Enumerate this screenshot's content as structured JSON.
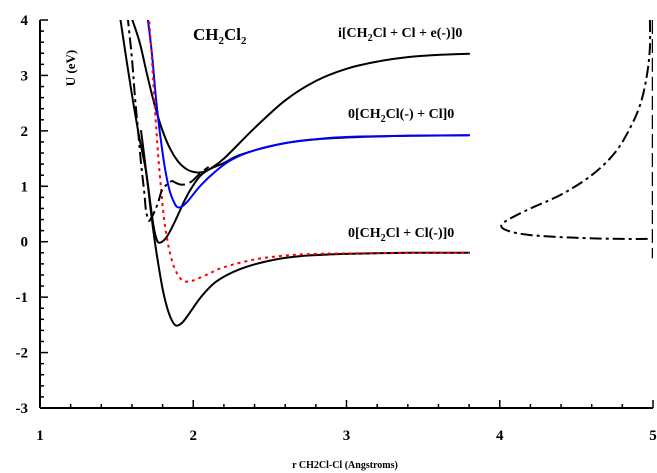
{
  "chart_data": {
    "type": "line",
    "xlabel": "r CH2Cl-Cl (Angstroms)",
    "ylabel": "U (eV)",
    "xlim": [
      1,
      5
    ],
    "ylim": [
      -3,
      4
    ],
    "x_ticks": [
      "1",
      "2",
      "3",
      "4",
      "5"
    ],
    "y_ticks": [
      "-3",
      "-2",
      "-1",
      "0",
      "1",
      "2",
      "3",
      "4"
    ],
    "grid": false,
    "annotations": {
      "molecule": {
        "main": "CH",
        "sub1": "2",
        "mid": "Cl",
        "sub2": "2"
      },
      "upper_state": {
        "pre": "i[CH",
        "sub": "2",
        "post": "Cl  + Cl + e(-)]0"
      },
      "middle_state": {
        "pre": "0[CH",
        "sub": "2",
        "post": "Cl(-) + Cl]0"
      },
      "lower_state": {
        "pre": "0[CH",
        "sub": "2",
        "post": "Cl + Cl(-)]0"
      }
    },
    "series": [
      {
        "color": "#000000",
        "dash": "solid",
        "points": [
          [
            1.59,
            4.1
          ],
          [
            1.65,
            3.6
          ],
          [
            1.7,
            3.0
          ],
          [
            1.75,
            2.45
          ],
          [
            1.8,
            2.0
          ],
          [
            1.85,
            1.67
          ],
          [
            1.9,
            1.45
          ],
          [
            1.95,
            1.32
          ],
          [
            2.0,
            1.26
          ],
          [
            2.05,
            1.25
          ],
          [
            2.1,
            1.3
          ],
          [
            2.2,
            1.5
          ],
          [
            2.4,
            2.05
          ],
          [
            2.6,
            2.55
          ],
          [
            2.8,
            2.9
          ],
          [
            3.0,
            3.12
          ],
          [
            3.2,
            3.25
          ],
          [
            3.4,
            3.33
          ],
          [
            3.6,
            3.37
          ],
          [
            3.8,
            3.39
          ]
        ]
      },
      {
        "color": "#000000",
        "dash": "solid",
        "points": [
          [
            1.52,
            4.1
          ],
          [
            1.58,
            3.0
          ],
          [
            1.64,
            2.0
          ],
          [
            1.69,
            1.3
          ],
          [
            1.72,
            0.7
          ],
          [
            1.74,
            0.3
          ],
          [
            1.76,
            0.05
          ],
          [
            1.78,
            -0.02
          ],
          [
            1.82,
            0.06
          ],
          [
            1.86,
            0.25
          ],
          [
            1.9,
            0.48
          ],
          [
            1.95,
            0.78
          ],
          [
            2.0,
            1.02
          ],
          [
            2.05,
            1.2
          ],
          [
            2.1,
            1.3
          ],
          [
            2.2,
            1.42
          ],
          [
            2.3,
            1.56
          ],
          [
            2.5,
            1.72
          ],
          [
            2.7,
            1.82
          ],
          [
            3.0,
            1.88
          ],
          [
            3.4,
            1.91
          ],
          [
            3.8,
            1.92
          ]
        ]
      },
      {
        "color": "#0000ff",
        "dash": "solid",
        "points": [
          [
            1.7,
            4.1
          ],
          [
            1.73,
            3.4
          ],
          [
            1.76,
            2.5
          ],
          [
            1.79,
            1.8
          ],
          [
            1.82,
            1.25
          ],
          [
            1.85,
            0.88
          ],
          [
            1.88,
            0.68
          ],
          [
            1.9,
            0.62
          ],
          [
            1.93,
            0.64
          ],
          [
            1.97,
            0.75
          ],
          [
            2.05,
            1.02
          ],
          [
            2.15,
            1.28
          ],
          [
            2.25,
            1.48
          ],
          [
            2.4,
            1.65
          ],
          [
            2.6,
            1.78
          ],
          [
            2.8,
            1.85
          ],
          [
            3.0,
            1.89
          ],
          [
            3.4,
            1.91
          ],
          [
            3.8,
            1.92
          ]
        ]
      },
      {
        "color": "#000000",
        "dash": "solid",
        "points": [
          [
            1.66,
            2.0
          ],
          [
            1.7,
            1.1
          ],
          [
            1.73,
            0.4
          ],
          [
            1.76,
            -0.2
          ],
          [
            1.8,
            -0.85
          ],
          [
            1.84,
            -1.28
          ],
          [
            1.88,
            -1.5
          ],
          [
            1.92,
            -1.48
          ],
          [
            1.96,
            -1.35
          ],
          [
            2.05,
            -1.0
          ],
          [
            2.15,
            -0.72
          ],
          [
            2.3,
            -0.5
          ],
          [
            2.5,
            -0.34
          ],
          [
            2.7,
            -0.26
          ],
          [
            3.0,
            -0.22
          ],
          [
            3.4,
            -0.2
          ],
          [
            3.8,
            -0.2
          ]
        ]
      },
      {
        "color": "#ff0000",
        "dash": "dotted",
        "points": [
          [
            1.71,
            4.1
          ],
          [
            1.73,
            3.3
          ],
          [
            1.75,
            2.4
          ],
          [
            1.77,
            1.6
          ],
          [
            1.79,
            0.95
          ],
          [
            1.81,
            0.4
          ],
          [
            1.84,
            -0.1
          ],
          [
            1.87,
            -0.42
          ],
          [
            1.9,
            -0.6
          ],
          [
            1.93,
            -0.7
          ],
          [
            1.96,
            -0.72
          ],
          [
            2.0,
            -0.7
          ],
          [
            2.1,
            -0.58
          ],
          [
            2.2,
            -0.46
          ],
          [
            2.4,
            -0.32
          ],
          [
            2.6,
            -0.25
          ],
          [
            2.8,
            -0.22
          ],
          [
            3.0,
            -0.21
          ],
          [
            3.4,
            -0.2
          ],
          [
            3.8,
            -0.2
          ]
        ]
      },
      {
        "color": "#000000",
        "dash": "dashdot",
        "points": [
          [
            1.57,
            4.1
          ],
          [
            1.6,
            3.3
          ],
          [
            1.62,
            2.6
          ],
          [
            1.64,
            2.0
          ],
          [
            1.66,
            1.4
          ],
          [
            1.68,
            0.9
          ],
          [
            1.69,
            0.6
          ],
          [
            1.7,
            0.45
          ],
          [
            1.71,
            0.38
          ],
          [
            1.72,
            0.4
          ],
          [
            1.74,
            0.5
          ],
          [
            1.77,
            0.7
          ],
          [
            1.8,
            0.95
          ],
          [
            1.86,
            1.1
          ]
        ]
      },
      {
        "color": "#000000",
        "dash": "longdash",
        "points": [
          [
            1.86,
            1.1
          ],
          [
            1.92,
            1.03
          ],
          [
            1.98,
            1.07
          ],
          [
            2.04,
            1.22
          ],
          [
            2.1,
            1.35
          ]
        ]
      },
      {
        "color": "#000000",
        "dash": "dashdot",
        "points": [
          [
            4.98,
            4.0
          ],
          [
            4.98,
            3.5
          ],
          [
            4.96,
            3.0
          ],
          [
            4.92,
            2.5
          ],
          [
            4.85,
            2.05
          ],
          [
            4.75,
            1.6
          ],
          [
            4.6,
            1.2
          ],
          [
            4.4,
            0.85
          ],
          [
            4.2,
            0.6
          ],
          [
            4.07,
            0.42
          ],
          [
            4.01,
            0.3
          ],
          [
            4.05,
            0.2
          ],
          [
            4.2,
            0.12
          ],
          [
            4.5,
            0.07
          ],
          [
            4.8,
            0.05
          ],
          [
            4.98,
            0.05
          ]
        ]
      },
      {
        "color": "#000000",
        "dash": "longdash",
        "width": 2.5,
        "points": [
          [
            5.0,
            4.0
          ],
          [
            5.0,
            -0.3
          ]
        ]
      }
    ]
  }
}
